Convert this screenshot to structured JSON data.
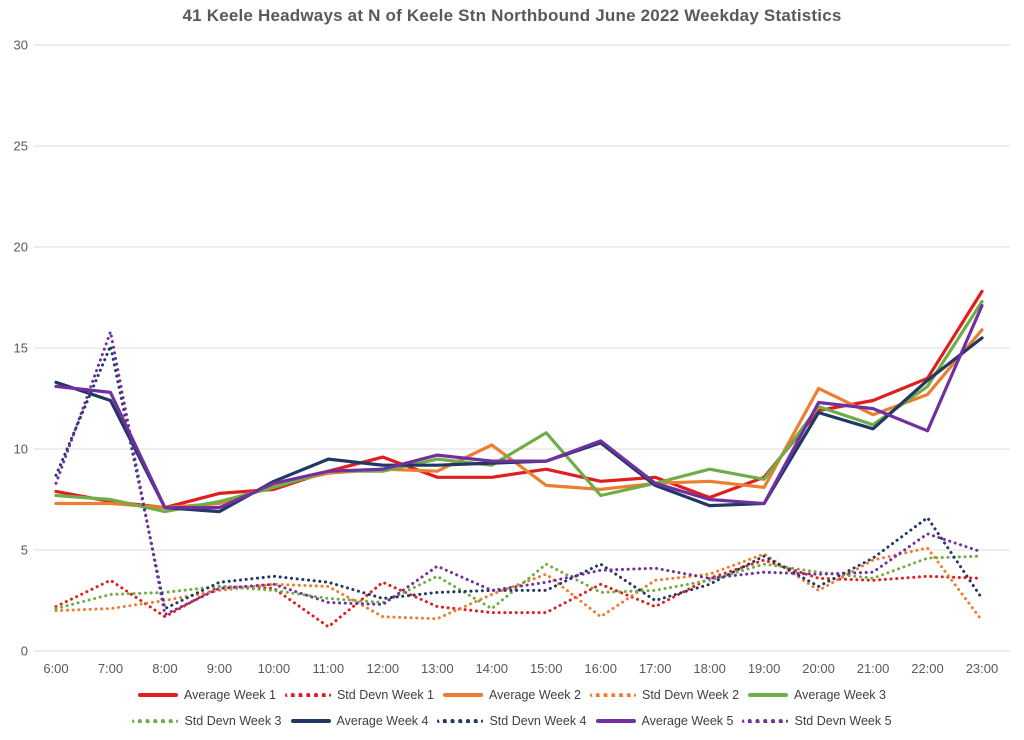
{
  "title": "41 Keele Headways at N of Keele Stn Northbound June 2022 Weekday Statistics",
  "colors": {
    "week1": "#E01E1E",
    "week2": "#ED7D31",
    "week3": "#70AD47",
    "week4": "#203864",
    "week5": "#7030A0",
    "grid": "#DCDCDC",
    "axis_text": "#595959",
    "title_text": "#595959",
    "legend_text": "#404040"
  },
  "chart_data": {
    "type": "line",
    "title": "41 Keele Headways at N of Keele Stn Northbound June 2022 Weekday Statistics",
    "xlabel": "",
    "ylabel": "",
    "x_labels": [
      "6:00",
      "7:00",
      "8:00",
      "9:00",
      "10:00",
      "11:00",
      "12:00",
      "13:00",
      "14:00",
      "15:00",
      "16:00",
      "17:00",
      "18:00",
      "19:00",
      "20:00",
      "21:00",
      "22:00",
      "23:00"
    ],
    "ylim": [
      0,
      30
    ],
    "yticks": [
      0,
      5,
      10,
      15,
      20,
      25,
      30
    ],
    "grid": "horizontal-only",
    "legend_position": "bottom",
    "series": [
      {
        "name": "Average Week 1",
        "style": "solid",
        "color": "#E01E1E",
        "values": [
          7.9,
          7.4,
          7.1,
          7.8,
          8.0,
          8.9,
          9.6,
          8.6,
          8.6,
          9.0,
          8.4,
          8.6,
          7.6,
          8.6,
          11.9,
          12.4,
          13.5,
          17.8
        ]
      },
      {
        "name": "Std Devn Week 1",
        "style": "dotted",
        "color": "#E01E1E",
        "values": [
          2.2,
          3.5,
          1.7,
          3.2,
          3.1,
          1.2,
          3.4,
          2.2,
          1.9,
          1.9,
          3.3,
          2.2,
          3.6,
          4.5,
          3.6,
          3.5,
          3.7,
          3.6
        ]
      },
      {
        "name": "Average Week 2",
        "style": "solid",
        "color": "#ED7D31",
        "values": [
          7.3,
          7.3,
          7.1,
          7.3,
          8.2,
          8.8,
          9.0,
          8.9,
          10.2,
          8.2,
          8.0,
          8.3,
          8.4,
          8.1,
          13.0,
          11.7,
          12.7,
          15.9
        ]
      },
      {
        "name": "Std Devn Week 2",
        "style": "dotted",
        "color": "#ED7D31",
        "values": [
          2.0,
          2.1,
          2.5,
          3.0,
          3.3,
          3.2,
          1.7,
          1.6,
          2.8,
          3.8,
          1.7,
          3.5,
          3.8,
          4.8,
          3.0,
          4.5,
          5.1,
          1.5
        ]
      },
      {
        "name": "Average Week 3",
        "style": "solid",
        "color": "#70AD47",
        "values": [
          7.7,
          7.5,
          6.9,
          7.4,
          8.1,
          8.9,
          8.9,
          9.5,
          9.2,
          10.8,
          7.7,
          8.3,
          9.0,
          8.5,
          12.1,
          11.2,
          13.1,
          17.3
        ]
      },
      {
        "name": "Std Devn Week 3",
        "style": "dotted",
        "color": "#70AD47",
        "values": [
          2.1,
          2.8,
          2.9,
          3.2,
          3.0,
          2.6,
          2.4,
          3.7,
          2.1,
          4.3,
          2.9,
          3.0,
          3.5,
          4.3,
          3.9,
          3.6,
          4.6,
          4.7
        ]
      },
      {
        "name": "Average Week 4",
        "style": "solid",
        "color": "#203864",
        "values": [
          13.3,
          12.4,
          7.1,
          6.9,
          8.4,
          9.5,
          9.2,
          9.2,
          9.3,
          9.4,
          10.3,
          8.2,
          7.2,
          7.3,
          11.8,
          11.0,
          13.4,
          15.5
        ]
      },
      {
        "name": "Std Devn Week 4",
        "style": "dotted",
        "color": "#203864",
        "values": [
          8.7,
          15.1,
          2.1,
          3.4,
          3.7,
          3.4,
          2.6,
          2.9,
          3.0,
          3.0,
          4.3,
          2.5,
          3.3,
          4.7,
          3.2,
          4.6,
          6.6,
          2.6
        ]
      },
      {
        "name": "Average Week 5",
        "style": "solid",
        "color": "#7030A0",
        "values": [
          13.1,
          12.8,
          7.1,
          7.1,
          8.3,
          8.9,
          9.0,
          9.7,
          9.4,
          9.4,
          10.4,
          8.3,
          7.5,
          7.3,
          12.3,
          12.0,
          10.9,
          17.1
        ]
      },
      {
        "name": "Std Devn Week 5",
        "style": "dotted",
        "color": "#7030A0",
        "values": [
          8.3,
          15.8,
          1.8,
          3.1,
          3.3,
          2.4,
          2.3,
          4.2,
          3.0,
          3.4,
          4.0,
          4.1,
          3.6,
          3.9,
          3.8,
          3.9,
          5.8,
          4.9
        ]
      }
    ]
  }
}
